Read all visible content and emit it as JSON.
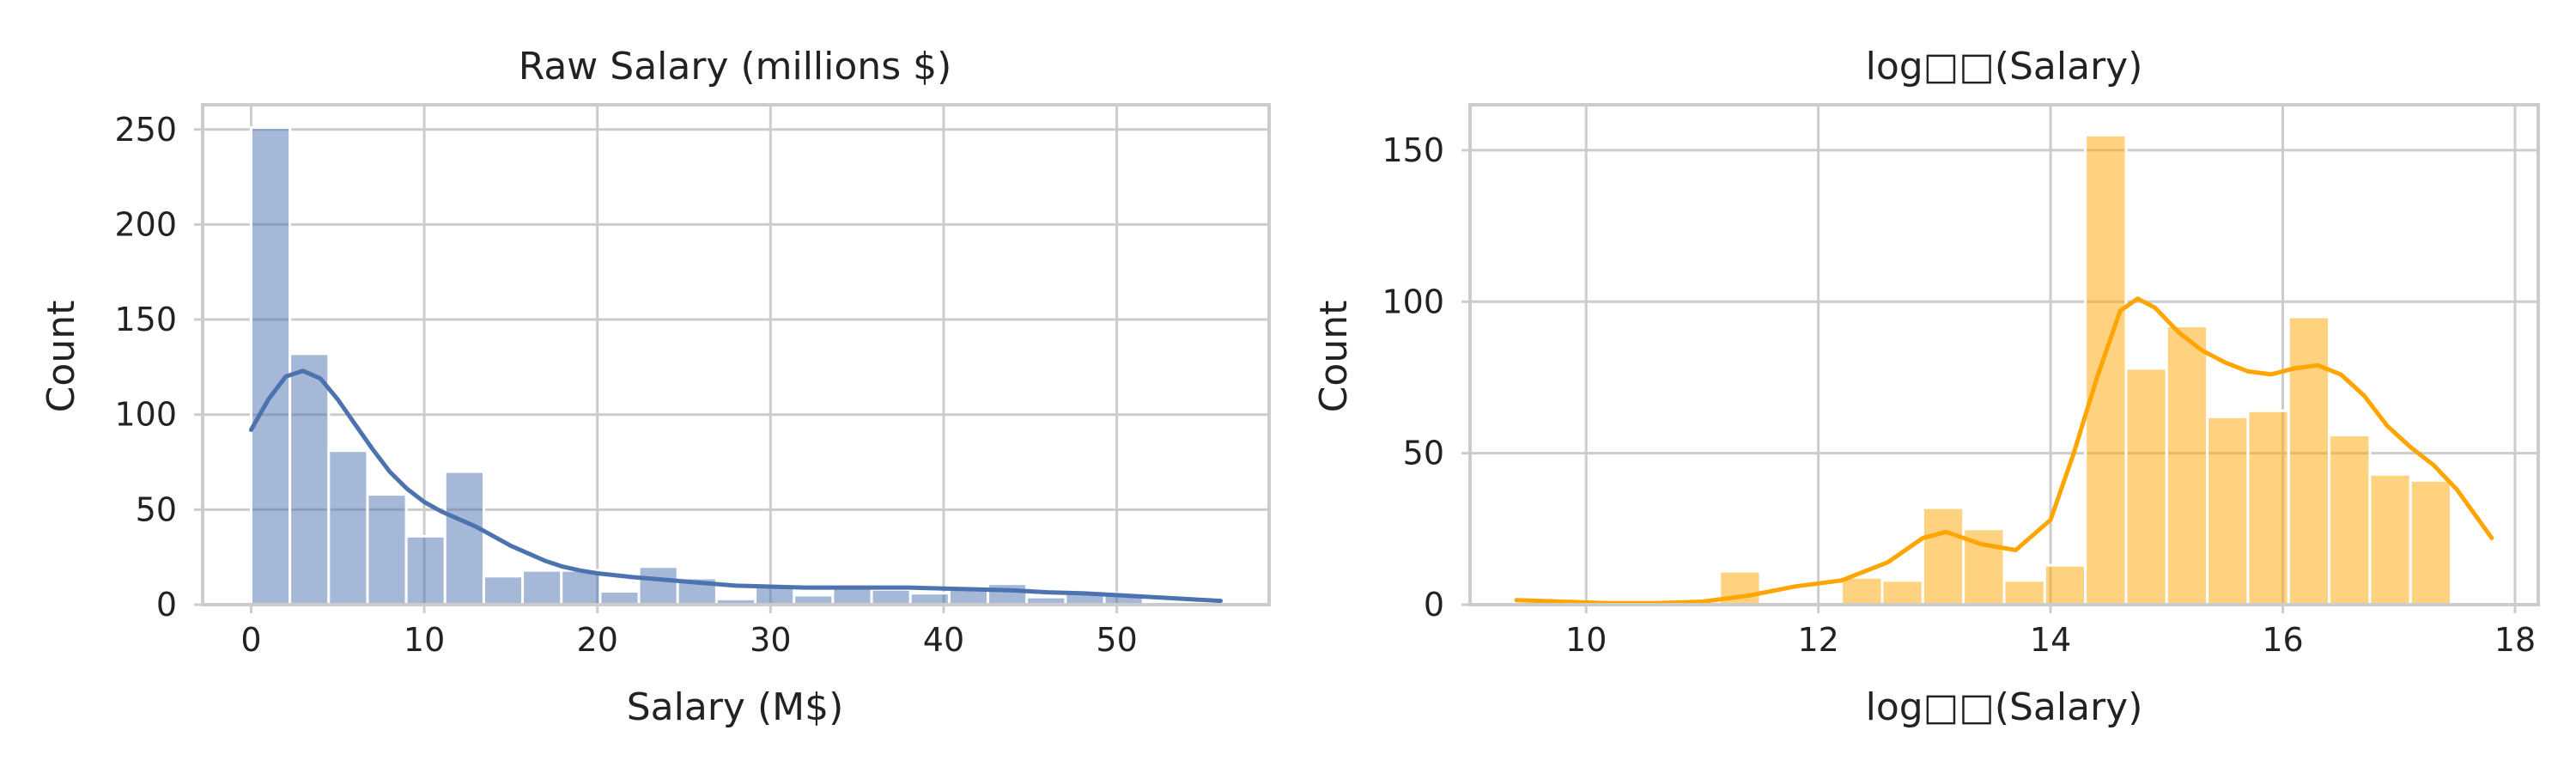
{
  "chart_data": [
    {
      "type": "bar",
      "kind": "histogram_with_kde",
      "title": "Raw Salary (millions $)",
      "xlabel": "Salary (M$)",
      "ylabel": "Count",
      "xlim": [
        -2.8,
        58.8
      ],
      "ylim": [
        0,
        263
      ],
      "xticks": [
        0,
        10,
        20,
        30,
        40,
        50
      ],
      "yticks": [
        0,
        50,
        100,
        150,
        200,
        250
      ],
      "grid": true,
      "bar_color": "#4c72b0",
      "bar_opacity": 0.5,
      "line_color": "#4c72b0",
      "bin_edges": [
        0,
        2.24,
        4.48,
        6.72,
        8.96,
        11.2,
        13.44,
        15.68,
        17.92,
        20.16,
        22.4,
        24.64,
        26.88,
        29.12,
        31.36,
        33.6,
        35.84,
        38.08,
        40.32,
        42.56,
        44.8,
        47.04,
        49.28,
        51.52,
        53.76,
        56.0
      ],
      "counts": [
        251,
        132,
        81,
        58,
        36,
        70,
        15,
        18,
        18,
        7,
        20,
        14,
        3,
        10,
        5,
        9,
        8,
        6,
        8,
        11,
        4,
        6,
        6,
        0,
        0
      ],
      "kde": {
        "x": [
          0,
          1,
          2,
          3,
          4,
          5,
          6,
          7,
          8,
          9,
          10,
          11,
          12,
          13,
          14,
          15,
          16,
          17,
          18,
          19,
          20,
          22,
          24,
          26,
          28,
          30,
          32,
          34,
          36,
          38,
          40,
          42,
          44,
          46,
          48,
          50,
          52,
          54,
          56
        ],
        "y": [
          92,
          108,
          120,
          123,
          119,
          108,
          95,
          82,
          70,
          61,
          54,
          49,
          45,
          41,
          36,
          31,
          27,
          23,
          20,
          18,
          16.5,
          14.5,
          13,
          11.5,
          10,
          9.5,
          9,
          9,
          9,
          9,
          8.5,
          8,
          7.5,
          6.5,
          6,
          5,
          4,
          3,
          2
        ]
      }
    },
    {
      "type": "bar",
      "kind": "histogram_with_kde",
      "title": "log□□(Salary)",
      "xlabel": "log□□(Salary)",
      "ylabel": "Count",
      "xlim": [
        9.0,
        18.2
      ],
      "ylim": [
        0,
        165
      ],
      "xticks": [
        10,
        12,
        14,
        16,
        18
      ],
      "yticks": [
        0,
        50,
        100,
        150
      ],
      "grid": true,
      "bar_color": "#ffa500",
      "bar_opacity": 0.5,
      "line_color": "#ffa500",
      "bin_edges": [
        9.4,
        9.75,
        10.1,
        10.45,
        10.8,
        11.15,
        11.5,
        11.85,
        12.2,
        12.55,
        12.9,
        13.25,
        13.6,
        13.95,
        14.3,
        14.65,
        15.0,
        15.35,
        15.7,
        16.05,
        16.4,
        16.75,
        17.1,
        17.45,
        17.8
      ],
      "counts": [
        1,
        0,
        0,
        0,
        0,
        11,
        0,
        0,
        9,
        8,
        32,
        25,
        8,
        13,
        155,
        78,
        92,
        62,
        64,
        95,
        56,
        43,
        41,
        0
      ],
      "kde": {
        "x": [
          9.4,
          9.8,
          10.2,
          10.6,
          11.0,
          11.4,
          11.8,
          12.2,
          12.6,
          12.9,
          13.1,
          13.4,
          13.7,
          14.0,
          14.2,
          14.4,
          14.6,
          14.75,
          14.9,
          15.1,
          15.3,
          15.5,
          15.7,
          15.9,
          16.1,
          16.3,
          16.5,
          16.7,
          16.9,
          17.1,
          17.3,
          17.5,
          17.8
        ],
        "y": [
          1.5,
          1,
          0.5,
          0.5,
          1,
          3,
          6,
          8,
          14,
          22,
          24,
          20,
          18,
          28,
          50,
          75,
          97,
          101,
          98,
          90,
          84,
          80,
          77,
          76,
          78,
          79,
          76,
          69,
          59,
          52,
          46,
          38,
          22
        ]
      }
    }
  ]
}
